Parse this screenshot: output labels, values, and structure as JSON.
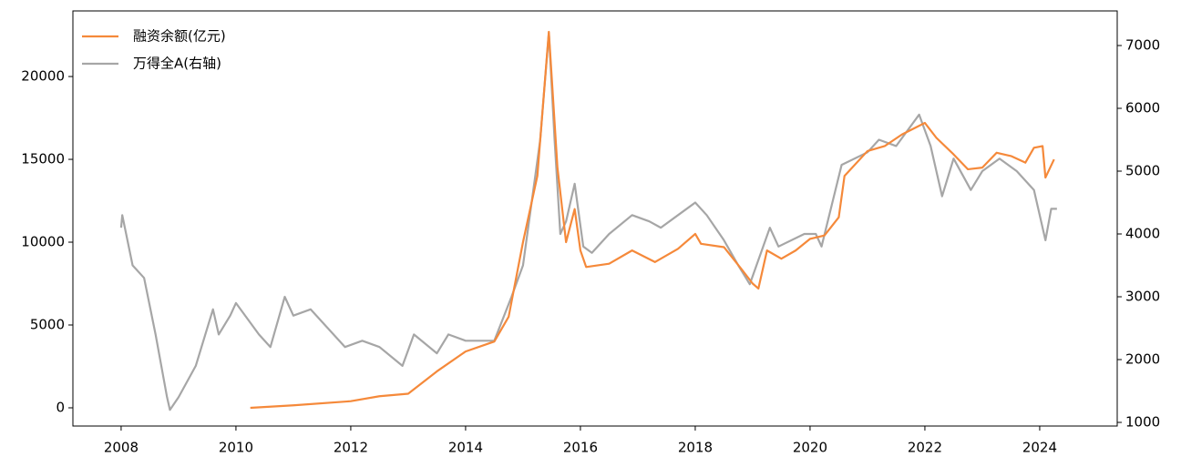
{
  "chart_data": {
    "type": "line",
    "legend": "upper left",
    "xlim": [
      2007.16,
      2025.35
    ],
    "xticks": [
      2008,
      2010,
      2012,
      2014,
      2016,
      2018,
      2020,
      2022,
      2024
    ],
    "ylim": [
      -1100,
      23960
    ],
    "yticks": [
      0,
      5000,
      10000,
      15000,
      20000
    ],
    "y2lim": [
      942,
      7551
    ],
    "y2ticks": [
      1000,
      2000,
      3000,
      4000,
      5000,
      6000,
      7000
    ],
    "series": [
      {
        "name": "融资余额(亿元)",
        "color": "#f5893a",
        "x": [
          2010.25,
          2011.0,
          2012.0,
          2012.5,
          2013.0,
          2013.5,
          2014.0,
          2014.5,
          2014.75,
          2015.0,
          2015.25,
          2015.45,
          2015.6,
          2015.75,
          2015.9,
          2016.0,
          2016.1,
          2016.5,
          2016.9,
          2017.3,
          2017.7,
          2018.0,
          2018.1,
          2018.5,
          2018.8,
          2019.0,
          2019.1,
          2019.25,
          2019.5,
          2019.75,
          2020.0,
          2020.25,
          2020.5,
          2020.6,
          2021.0,
          2021.3,
          2021.6,
          2022.0,
          2022.2,
          2022.5,
          2022.75,
          2023.0,
          2023.25,
          2023.5,
          2023.75,
          2023.9,
          2024.05,
          2024.1,
          2024.25
        ],
        "values": [
          0,
          150,
          400,
          700,
          850,
          2200,
          3400,
          4000,
          5500,
          10000,
          14000,
          22700,
          14500,
          10000,
          12000,
          9500,
          8500,
          8700,
          9500,
          8800,
          9600,
          10500,
          9900,
          9700,
          8400,
          7500,
          7200,
          9500,
          9000,
          9500,
          10200,
          10400,
          11500,
          14000,
          15500,
          15800,
          16500,
          17200,
          16300,
          15300,
          14400,
          14500,
          15400,
          15200,
          14800,
          15700,
          15800,
          13900,
          15000
        ]
      },
      {
        "name": "万得全A(右轴)",
        "color": "#a6a6a6",
        "axis": "y2",
        "x": [
          2008.0,
          2008.02,
          2008.2,
          2008.4,
          2008.6,
          2008.8,
          2008.85,
          2009.0,
          2009.3,
          2009.6,
          2009.7,
          2009.9,
          2010.0,
          2010.4,
          2010.6,
          2010.85,
          2011.0,
          2011.3,
          2011.6,
          2011.9,
          2012.2,
          2012.5,
          2012.9,
          2013.1,
          2013.5,
          2013.7,
          2014.0,
          2014.5,
          2014.8,
          2015.0,
          2015.3,
          2015.45,
          2015.55,
          2015.65,
          2015.75,
          2015.9,
          2016.05,
          2016.2,
          2016.5,
          2016.9,
          2017.2,
          2017.4,
          2017.7,
          2018.0,
          2018.2,
          2018.5,
          2018.75,
          2018.95,
          2019.3,
          2019.45,
          2019.9,
          2020.1,
          2020.2,
          2020.55,
          2021.0,
          2021.2,
          2021.5,
          2021.9,
          2022.1,
          2022.3,
          2022.5,
          2022.8,
          2023.0,
          2023.3,
          2023.6,
          2023.9,
          2024.1,
          2024.2,
          2024.3
        ],
        "values": [
          4100,
          4300,
          3500,
          3300,
          2400,
          1400,
          1200,
          1400,
          1900,
          2800,
          2400,
          2700,
          2900,
          2400,
          2200,
          3000,
          2700,
          2800,
          2500,
          2200,
          2300,
          2200,
          1900,
          2400,
          2100,
          2400,
          2300,
          2300,
          3000,
          3500,
          5500,
          7200,
          5500,
          4000,
          4200,
          4800,
          3800,
          3700,
          4000,
          4300,
          4200,
          4100,
          4300,
          4500,
          4300,
          3900,
          3500,
          3200,
          4100,
          3800,
          4000,
          4000,
          3800,
          5100,
          5300,
          5500,
          5400,
          5900,
          5400,
          4600,
          5200,
          4700,
          5000,
          5200,
          5000,
          4700,
          3900,
          4400,
          4400
        ]
      }
    ]
  }
}
